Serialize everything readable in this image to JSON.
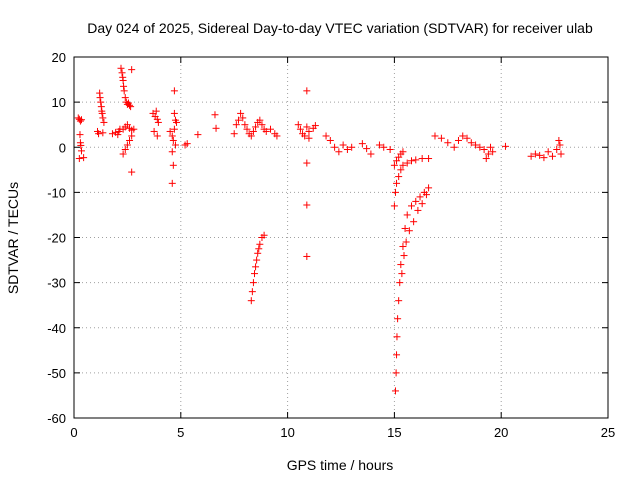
{
  "chart_data": {
    "type": "scatter",
    "title": "Day 024 of 2025, Sidereal Day-to-day VTEC variation (SDTVAR) for receiver ulab",
    "xlabel": "GPS time / hours",
    "ylabel": "SDTVAR / TECUs",
    "xlim": [
      0,
      25
    ],
    "ylim": [
      -60,
      20
    ],
    "xticks": [
      "0",
      "5",
      "10",
      "15",
      "20",
      "25"
    ],
    "yticks": [
      "20",
      "10",
      "0",
      "-10",
      "-20",
      "-30",
      "-40",
      "-50",
      "-60"
    ],
    "grid": true,
    "marker": "+",
    "color": "#ff0000",
    "series": [
      {
        "name": "ulab",
        "points": [
          [
            0.2,
            6.5
          ],
          [
            0.25,
            6.2
          ],
          [
            0.3,
            5.8
          ],
          [
            0.35,
            6.1
          ],
          [
            0.28,
            2.8
          ],
          [
            0.3,
            1.0
          ],
          [
            0.32,
            0.4
          ],
          [
            0.35,
            -0.8
          ],
          [
            0.25,
            -2.5
          ],
          [
            0.45,
            -2.3
          ],
          [
            1.1,
            3.5
          ],
          [
            1.15,
            3.0
          ],
          [
            1.2,
            12.0
          ],
          [
            1.22,
            11.0
          ],
          [
            1.25,
            10.0
          ],
          [
            1.28,
            9.0
          ],
          [
            1.3,
            8.0
          ],
          [
            1.32,
            7.5
          ],
          [
            1.35,
            6.5
          ],
          [
            1.4,
            5.5
          ],
          [
            1.35,
            3.2
          ],
          [
            1.8,
            3.0
          ],
          [
            1.95,
            3.3
          ],
          [
            2.05,
            2.8
          ],
          [
            2.1,
            3.5
          ],
          [
            2.15,
            4.0
          ],
          [
            2.2,
            17.5
          ],
          [
            2.25,
            16.5
          ],
          [
            2.28,
            15.5
          ],
          [
            2.3,
            14.8
          ],
          [
            2.32,
            13.5
          ],
          [
            2.35,
            12.5
          ],
          [
            2.4,
            11.0
          ],
          [
            2.45,
            10.0
          ],
          [
            2.5,
            9.5
          ],
          [
            2.55,
            9.8
          ],
          [
            2.6,
            9.3
          ],
          [
            2.65,
            9.0
          ],
          [
            2.7,
            17.2
          ],
          [
            2.3,
            4.0
          ],
          [
            2.4,
            4.5
          ],
          [
            2.5,
            5.0
          ],
          [
            2.6,
            4.2
          ],
          [
            2.7,
            3.8
          ],
          [
            2.8,
            4.0
          ],
          [
            2.3,
            -1.5
          ],
          [
            2.4,
            -0.5
          ],
          [
            2.5,
            0.5
          ],
          [
            2.6,
            1.5
          ],
          [
            2.7,
            2.5
          ],
          [
            2.7,
            -5.5
          ],
          [
            3.7,
            7.5
          ],
          [
            3.8,
            6.8
          ],
          [
            3.9,
            6.2
          ],
          [
            3.95,
            5.5
          ],
          [
            3.85,
            8.0
          ],
          [
            3.75,
            3.5
          ],
          [
            3.9,
            2.5
          ],
          [
            4.5,
            3.5
          ],
          [
            4.6,
            2.5
          ],
          [
            4.65,
            1.5
          ],
          [
            4.7,
            7.5
          ],
          [
            4.75,
            6.0
          ],
          [
            4.8,
            5.5
          ],
          [
            4.7,
            4.0
          ],
          [
            4.7,
            12.5
          ],
          [
            4.65,
            -4.0
          ],
          [
            4.6,
            -8.0
          ],
          [
            4.6,
            -1.0
          ],
          [
            4.75,
            0.5
          ],
          [
            5.2,
            0.5
          ],
          [
            5.3,
            0.8
          ],
          [
            5.8,
            2.8
          ],
          [
            6.6,
            7.2
          ],
          [
            6.65,
            4.2
          ],
          [
            7.5,
            3.0
          ],
          [
            7.6,
            5.0
          ],
          [
            7.7,
            6.0
          ],
          [
            7.8,
            7.5
          ],
          [
            7.9,
            6.5
          ],
          [
            8.0,
            5.0
          ],
          [
            8.1,
            4.0
          ],
          [
            8.2,
            3.0
          ],
          [
            8.3,
            2.5
          ],
          [
            8.4,
            3.5
          ],
          [
            8.5,
            4.5
          ],
          [
            8.6,
            5.5
          ],
          [
            8.7,
            6.0
          ],
          [
            8.8,
            5.0
          ],
          [
            8.9,
            4.0
          ],
          [
            9.0,
            3.5
          ],
          [
            9.2,
            4.0
          ],
          [
            9.4,
            3.0
          ],
          [
            9.5,
            2.5
          ],
          [
            8.3,
            -34.0
          ],
          [
            8.35,
            -32.0
          ],
          [
            8.4,
            -30.0
          ],
          [
            8.45,
            -28.0
          ],
          [
            8.5,
            -26.5
          ],
          [
            8.55,
            -25.0
          ],
          [
            8.6,
            -23.5
          ],
          [
            8.65,
            -22.5
          ],
          [
            8.7,
            -21.5
          ],
          [
            8.8,
            -20.0
          ],
          [
            8.9,
            -19.5
          ],
          [
            10.5,
            5.0
          ],
          [
            10.6,
            4.0
          ],
          [
            10.7,
            3.0
          ],
          [
            10.8,
            2.5
          ],
          [
            10.9,
            4.5
          ],
          [
            11.0,
            3.5
          ],
          [
            11.2,
            4.2
          ],
          [
            11.3,
            4.8
          ],
          [
            10.9,
            12.5
          ],
          [
            10.9,
            -3.5
          ],
          [
            10.9,
            -12.8
          ],
          [
            10.9,
            -24.2
          ],
          [
            11.0,
            2.0
          ],
          [
            11.8,
            2.5
          ],
          [
            12.0,
            1.5
          ],
          [
            12.2,
            0.0
          ],
          [
            12.4,
            -1.0
          ],
          [
            12.6,
            0.5
          ],
          [
            12.8,
            -0.5
          ],
          [
            13.0,
            0.0
          ],
          [
            13.5,
            0.8
          ],
          [
            13.7,
            -0.3
          ],
          [
            13.9,
            -1.5
          ],
          [
            14.3,
            0.5
          ],
          [
            14.5,
            0.0
          ],
          [
            14.8,
            -0.5
          ],
          [
            15.0,
            -4.0
          ],
          [
            15.1,
            -3.0
          ],
          [
            15.2,
            -2.2
          ],
          [
            15.3,
            -1.5
          ],
          [
            15.4,
            -1.0
          ],
          [
            15.0,
            -13.0
          ],
          [
            15.05,
            -10.0
          ],
          [
            15.1,
            -8.0
          ],
          [
            15.2,
            -6.5
          ],
          [
            15.3,
            -5.0
          ],
          [
            15.4,
            -4.0
          ],
          [
            15.6,
            -3.5
          ],
          [
            15.8,
            -3.0
          ],
          [
            16.0,
            -2.8
          ],
          [
            16.3,
            -2.5
          ],
          [
            16.6,
            -2.5
          ],
          [
            15.05,
            -54.0
          ],
          [
            15.08,
            -50.0
          ],
          [
            15.1,
            -46.0
          ],
          [
            15.12,
            -42.0
          ],
          [
            15.15,
            -38.0
          ],
          [
            15.2,
            -34.0
          ],
          [
            15.25,
            -30.0
          ],
          [
            15.3,
            -26.0
          ],
          [
            15.4,
            -22.0
          ],
          [
            15.5,
            -18.0
          ],
          [
            15.6,
            -15.0
          ],
          [
            15.8,
            -13.0
          ],
          [
            16.0,
            -12.0
          ],
          [
            16.2,
            -11.0
          ],
          [
            16.4,
            -10.0
          ],
          [
            16.6,
            -9.0
          ],
          [
            15.35,
            -28.0
          ],
          [
            15.45,
            -24.0
          ],
          [
            15.55,
            -21.0
          ],
          [
            15.7,
            -18.5
          ],
          [
            15.9,
            -16.5
          ],
          [
            16.1,
            -14.0
          ],
          [
            16.3,
            -12.5
          ],
          [
            16.5,
            -10.5
          ],
          [
            16.9,
            2.5
          ],
          [
            17.2,
            2.0
          ],
          [
            17.5,
            1.0
          ],
          [
            17.8,
            0.0
          ],
          [
            18.0,
            1.5
          ],
          [
            18.2,
            2.5
          ],
          [
            18.4,
            2.0
          ],
          [
            18.6,
            1.0
          ],
          [
            18.8,
            0.5
          ],
          [
            19.0,
            0.0
          ],
          [
            19.2,
            -0.5
          ],
          [
            19.4,
            -1.5
          ],
          [
            19.6,
            -1.0
          ],
          [
            19.3,
            -2.5
          ],
          [
            19.5,
            0.0
          ],
          [
            20.2,
            0.2
          ],
          [
            21.4,
            -2.0
          ],
          [
            21.6,
            -1.5
          ],
          [
            21.8,
            -1.8
          ],
          [
            22.0,
            -2.3
          ],
          [
            22.2,
            -1.0
          ],
          [
            22.4,
            -2.0
          ],
          [
            22.6,
            -0.5
          ],
          [
            22.7,
            1.5
          ],
          [
            22.8,
            -1.5
          ],
          [
            22.75,
            0.5
          ]
        ]
      }
    ]
  }
}
